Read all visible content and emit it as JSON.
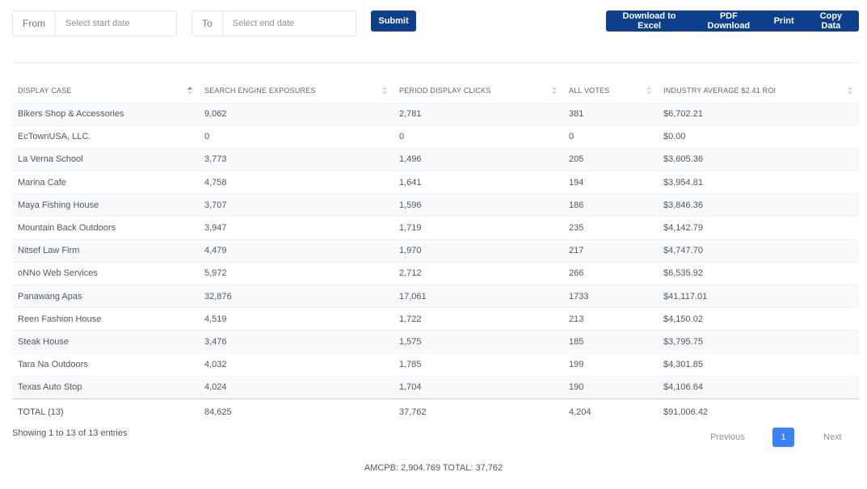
{
  "filters": {
    "from_label": "From",
    "from_placeholder": "Select start date",
    "to_label": "To",
    "to_placeholder": "Select end date",
    "submit_label": "Submit"
  },
  "export_buttons": [
    "Download to Excel",
    "PDF Download",
    "Print",
    "Copy Data"
  ],
  "table": {
    "columns": [
      "DISPLAY CASE",
      "SEARCH ENGINE EXPOSURES",
      "PERIOD DISPLAY CLICKS",
      "ALL VOTES",
      "INDUSTRY AVERAGE $2.41 ROI"
    ],
    "rows": [
      [
        "Bikers Shop & Accessories",
        "9,062",
        "2,781",
        "381",
        "$6,702.21"
      ],
      [
        "EcTownUSA, LLC.",
        "0",
        "0",
        "0",
        "$0.00"
      ],
      [
        "La Verna School",
        "3,773",
        "1,496",
        "205",
        "$3,605.36"
      ],
      [
        "Marina Cafe",
        "4,758",
        "1,641",
        "194",
        "$3,954.81"
      ],
      [
        "Maya Fishing House",
        "3,707",
        "1,596",
        "186",
        "$3,846.36"
      ],
      [
        "Mountain Back Outdoors",
        "3,947",
        "1,719",
        "235",
        "$4,142.79"
      ],
      [
        "Nitsef Law Firm",
        "4,479",
        "1,970",
        "217",
        "$4,747.70"
      ],
      [
        "oNNo Web Services",
        "5,972",
        "2,712",
        "266",
        "$6,535.92"
      ],
      [
        "Panawang Apas",
        "32,876",
        "17,061",
        "1733",
        "$41,117.01"
      ],
      [
        "Reen Fashion House",
        "4,519",
        "1,722",
        "213",
        "$4,150.02"
      ],
      [
        "Steak House",
        "3,476",
        "1,575",
        "185",
        "$3,795.75"
      ],
      [
        "Tara Na Outdoors",
        "4,032",
        "1,785",
        "199",
        "$4,301.85"
      ],
      [
        "Texas Auto Stop",
        "4,024",
        "1,704",
        "190",
        "$4,106.64"
      ]
    ],
    "totals": [
      "TOTAL (13)",
      "84,625",
      "37,762",
      "4,204",
      "$91,006.42"
    ]
  },
  "info_text": "Showing 1 to 13 of 13 entries",
  "pagination": {
    "previous": "Previous",
    "current_page": "1",
    "next": "Next"
  },
  "summary": "AMCPB: 2,904.769 TOTAL: 37,762"
}
